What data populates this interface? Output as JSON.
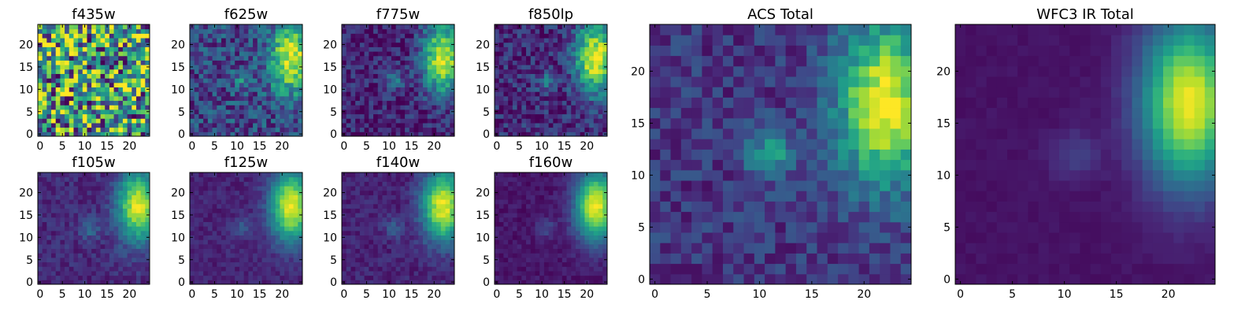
{
  "figure": {
    "colormap": "viridis",
    "colormap_stops": [
      "#440154",
      "#482878",
      "#3e4a89",
      "#31688e",
      "#26828e",
      "#1f9e89",
      "#35b779",
      "#6ece58",
      "#b5de2b",
      "#fde725"
    ],
    "frame_color": "#000000",
    "background": "#ffffff"
  },
  "chart_data": [
    {
      "type": "heatmap",
      "title": "f435w",
      "grid": false,
      "xlim": [
        0,
        24
      ],
      "ylim": [
        0,
        24
      ],
      "xticks": [
        "0",
        "5",
        "10",
        "15",
        "20"
      ],
      "yticks": [
        "0",
        "5",
        "10",
        "15",
        "20"
      ],
      "source": {
        "kind": "noise",
        "amplitude": 0.55,
        "base": 0.55
      },
      "seed": 11,
      "shape": [
        25,
        25
      ]
    },
    {
      "type": "heatmap",
      "title": "f625w",
      "grid": false,
      "xlim": [
        0,
        24
      ],
      "ylim": [
        0,
        24
      ],
      "xticks": [
        "0",
        "5",
        "10",
        "15",
        "20"
      ],
      "yticks": [
        "0",
        "5",
        "10",
        "15",
        "20"
      ],
      "source": {
        "kind": "sources",
        "background": 0.22,
        "noise": 0.2,
        "galaxy_center": [
          22,
          17
        ],
        "galaxy_peak": 0.75,
        "target_center": [
          11,
          12
        ],
        "target_peak": 0.22
      },
      "seed": 23,
      "shape": [
        25,
        25
      ]
    },
    {
      "type": "heatmap",
      "title": "f775w",
      "grid": false,
      "xlim": [
        0,
        24
      ],
      "ylim": [
        0,
        24
      ],
      "xticks": [
        "0",
        "5",
        "10",
        "15",
        "20"
      ],
      "yticks": [
        "0",
        "5",
        "10",
        "15",
        "20"
      ],
      "source": {
        "kind": "sources",
        "background": 0.1,
        "noise": 0.15,
        "galaxy_center": [
          22,
          17
        ],
        "galaxy_peak": 0.85,
        "target_center": [
          11,
          12
        ],
        "target_peak": 0.3
      },
      "seed": 37,
      "shape": [
        25,
        25
      ]
    },
    {
      "type": "heatmap",
      "title": "f850lp",
      "grid": false,
      "xlim": [
        0,
        24
      ],
      "ylim": [
        0,
        24
      ],
      "xticks": [
        "0",
        "5",
        "10",
        "15",
        "20"
      ],
      "yticks": [
        "0",
        "5",
        "10",
        "15",
        "20"
      ],
      "source": {
        "kind": "sources",
        "background": 0.12,
        "noise": 0.16,
        "galaxy_center": [
          22,
          17
        ],
        "galaxy_peak": 0.85,
        "target_center": [
          11,
          12
        ],
        "target_peak": 0.25
      },
      "seed": 41,
      "shape": [
        25,
        25
      ]
    },
    {
      "type": "heatmap",
      "title": "f105w",
      "grid": false,
      "xlim": [
        0,
        24
      ],
      "ylim": [
        0,
        24
      ],
      "xticks": [
        "0",
        "5",
        "10",
        "15",
        "20"
      ],
      "yticks": [
        "0",
        "5",
        "10",
        "15",
        "20"
      ],
      "source": {
        "kind": "sources",
        "background": 0.12,
        "noise": 0.08,
        "galaxy_center": [
          22,
          17
        ],
        "galaxy_peak": 0.85,
        "target_center": [
          11,
          12
        ],
        "target_peak": 0.22
      },
      "seed": 53,
      "shape": [
        25,
        25
      ]
    },
    {
      "type": "heatmap",
      "title": "f125w",
      "grid": false,
      "xlim": [
        0,
        24
      ],
      "ylim": [
        0,
        24
      ],
      "xticks": [
        "0",
        "5",
        "10",
        "15",
        "20"
      ],
      "yticks": [
        "0",
        "5",
        "10",
        "15",
        "20"
      ],
      "source": {
        "kind": "sources",
        "background": 0.1,
        "noise": 0.06,
        "galaxy_center": [
          22,
          17
        ],
        "galaxy_peak": 0.88,
        "target_center": [
          11,
          12
        ],
        "target_peak": 0.18
      },
      "seed": 61,
      "shape": [
        25,
        25
      ]
    },
    {
      "type": "heatmap",
      "title": "f140w",
      "grid": false,
      "xlim": [
        0,
        24
      ],
      "ylim": [
        0,
        24
      ],
      "xticks": [
        "0",
        "5",
        "10",
        "15",
        "20"
      ],
      "yticks": [
        "0",
        "5",
        "10",
        "15",
        "20"
      ],
      "source": {
        "kind": "sources",
        "background": 0.1,
        "noise": 0.07,
        "galaxy_center": [
          22,
          17
        ],
        "galaxy_peak": 0.88,
        "target_center": [
          11,
          12
        ],
        "target_peak": 0.18
      },
      "seed": 71,
      "shape": [
        25,
        25
      ]
    },
    {
      "type": "heatmap",
      "title": "f160w",
      "grid": false,
      "xlim": [
        0,
        24
      ],
      "ylim": [
        0,
        24
      ],
      "xticks": [
        "0",
        "5",
        "10",
        "15",
        "20"
      ],
      "yticks": [
        "0",
        "5",
        "10",
        "15",
        "20"
      ],
      "source": {
        "kind": "sources",
        "background": 0.06,
        "noise": 0.05,
        "galaxy_center": [
          22,
          17
        ],
        "galaxy_peak": 0.92,
        "target_center": [
          11,
          12
        ],
        "target_peak": 0.16
      },
      "seed": 83,
      "shape": [
        25,
        25
      ]
    },
    {
      "type": "heatmap",
      "title": "ACS Total",
      "grid": false,
      "xlim": [
        0,
        24
      ],
      "ylim": [
        0,
        24
      ],
      "xticks": [
        "0",
        "5",
        "10",
        "15",
        "20"
      ],
      "yticks": [
        "0",
        "5",
        "10",
        "15",
        "20"
      ],
      "source": {
        "kind": "sources",
        "background": 0.16,
        "noise": 0.12,
        "galaxy_center": [
          22,
          17
        ],
        "galaxy_peak": 0.82,
        "target_center": [
          11,
          12
        ],
        "target_peak": 0.4
      },
      "seed": 97,
      "shape": [
        25,
        25
      ]
    },
    {
      "type": "heatmap",
      "title": "WFC3 IR Total",
      "grid": false,
      "xlim": [
        0,
        24
      ],
      "ylim": [
        0,
        24
      ],
      "xticks": [
        "0",
        "5",
        "10",
        "15",
        "20"
      ],
      "yticks": [
        "0",
        "5",
        "10",
        "15",
        "20"
      ],
      "source": {
        "kind": "sources",
        "background": 0.05,
        "noise": 0.02,
        "galaxy_center": [
          22,
          17
        ],
        "galaxy_peak": 0.93,
        "target_center": [
          11,
          12
        ],
        "target_peak": 0.15
      },
      "seed": 101,
      "shape": [
        25,
        25
      ]
    }
  ]
}
